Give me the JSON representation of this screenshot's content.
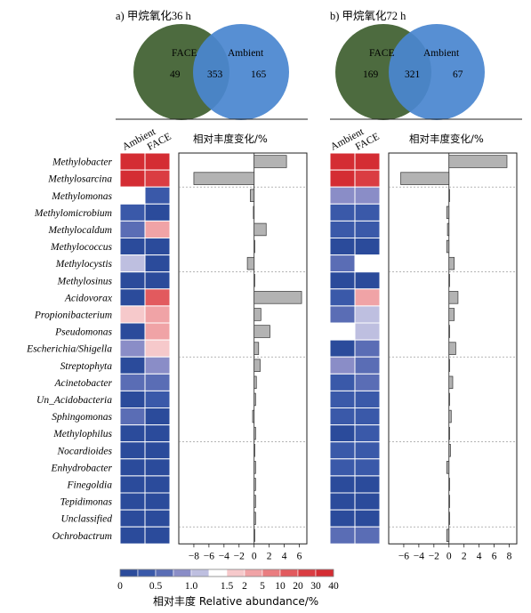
{
  "panels": [
    {
      "title": "a) 甲烷氧化36 h",
      "venn": {
        "left_label": "FACE",
        "right_label": "Ambient",
        "left_only": "49",
        "shared": "353",
        "right_only": "165"
      },
      "heatmap_columns": [
        "Ambient",
        "FACE"
      ],
      "bar_axis_label": "相对丰度变化/%"
    },
    {
      "title": "b) 甲烷氧化72 h",
      "venn": {
        "left_label": "FACE",
        "right_label": "Ambient",
        "left_only": "169",
        "shared": "321",
        "right_only": "67"
      },
      "heatmap_columns": [
        "Ambient",
        "FACE"
      ],
      "bar_axis_label": "相对丰度变化/%"
    }
  ],
  "colorbar": {
    "tick_labels": [
      "0",
      "0.5",
      "1.0",
      "1.5",
      "2",
      "5",
      "10",
      "20",
      "30",
      "40"
    ],
    "colors": [
      "#2b4b9b",
      "#3a59a9",
      "#5a6db5",
      "#8a8dc7",
      "#bebfe0",
      "#ffffff",
      "#f6c9cb",
      "#f0a3a6",
      "#ea7d80",
      "#e25a5e",
      "#da3d42",
      "#d42d33"
    ],
    "label": "相对丰度 Relative abundance/%"
  },
  "colors": {
    "face": "#4d6b3f",
    "ambient": "#4a86d0",
    "bar": "#b3b3b3"
  },
  "chart_data": [
    {
      "type": "heatmap",
      "title": "a) 甲烷氧化36 h",
      "rows": [
        "Methylobacter",
        "Methylosarcina",
        "Methylomonas",
        "Methylomicrobium",
        "Methylocaldum",
        "Methylococcus",
        "Methylocystis",
        "Methylosinus",
        "Acidovorax",
        "Propionibacterium",
        "Pseudomonas",
        "Escherichia/Shigella",
        "Streptophyta",
        "Acinetobacter",
        "Un_Acidobacteria",
        "Sphingomonas",
        "Methylophilus",
        "Nocardioides",
        "Enhydrobacter",
        "Finegoldia",
        "Tepidimonas",
        "Unclassified",
        "Ochrobactrum"
      ],
      "columns": [
        "Ambient",
        "FACE"
      ],
      "values": [
        [
          22,
          24
        ],
        [
          26,
          16
        ],
        [
          1.4,
          0.3
        ],
        [
          0.3,
          0.2
        ],
        [
          0.6,
          2.6
        ],
        [
          0.2,
          0.2
        ],
        [
          1.0,
          0.2
        ],
        [
          0.2,
          0.2
        ],
        [
          0.2,
          5.5
        ],
        [
          1.7,
          3.2
        ],
        [
          0.2,
          3.0
        ],
        [
          0.9,
          1.7
        ],
        [
          0.2,
          0.9
        ],
        [
          0.5,
          0.6
        ],
        [
          0.2,
          0.3
        ],
        [
          0.5,
          0.2
        ],
        [
          0.2,
          0.2
        ],
        [
          0.2,
          0.2
        ],
        [
          0.2,
          0.2
        ],
        [
          0.2,
          0.2
        ],
        [
          0.2,
          0.2
        ],
        [
          0.2,
          0.2
        ],
        [
          0.2,
          0.2
        ]
      ]
    },
    {
      "type": "bar",
      "title": "",
      "categories": [
        "Methylobacter",
        "Methylosarcina",
        "Methylomonas",
        "Methylomicrobium",
        "Methylocaldum",
        "Methylococcus",
        "Methylocystis",
        "Methylosinus",
        "Acidovorax",
        "Propionibacterium",
        "Pseudomonas",
        "Escherichia/Shigella",
        "Streptophyta",
        "Acinetobacter",
        "Un_Acidobacteria",
        "Sphingomonas",
        "Methylophilus",
        "Nocardioides",
        "Enhydrobacter",
        "Finegoldia",
        "Tepidimonas",
        "Unclassified",
        "Ochrobactrum"
      ],
      "values": [
        4.3,
        -8.0,
        -0.5,
        -0.1,
        1.6,
        0.1,
        -0.9,
        0.0,
        6.3,
        0.9,
        2.1,
        0.6,
        0.8,
        0.3,
        0.2,
        -0.2,
        0.2,
        0.1,
        0.2,
        0.2,
        0.2,
        0.2,
        0.0
      ],
      "xlabel": "相对丰度变化/%",
      "xlim": [
        -10,
        7
      ],
      "xticks": [
        -8,
        -6,
        -4,
        -2,
        0,
        2,
        4,
        6
      ]
    },
    {
      "type": "heatmap",
      "title": "b) 甲烷氧化72 h",
      "rows": [
        "Methylobacter",
        "Methylosarcina",
        "Methylomonas",
        "Methylomicrobium",
        "Methylocaldum",
        "Methylococcus",
        "Methylocystis",
        "Methylosinus",
        "Acidovorax",
        "Propionibacterium",
        "Pseudomonas",
        "Escherichia/Shigella",
        "Streptophyta",
        "Acinetobacter",
        "Un_Acidobacteria",
        "Sphingomonas",
        "Methylophilus",
        "Nocardioides",
        "Enhydrobacter",
        "Finegoldia",
        "Tepidimonas",
        "Unclassified",
        "Ochrobactrum"
      ],
      "columns": [
        "Ambient",
        "FACE"
      ],
      "values": [
        [
          30,
          28
        ],
        [
          22,
          14
        ],
        [
          0.9,
          0.8
        ],
        [
          0.3,
          0.3
        ],
        [
          0.3,
          0.3
        ],
        [
          0.2,
          0.2
        ],
        [
          0.6,
          1.4
        ],
        [
          0.2,
          0.2
        ],
        [
          0.4,
          2.3
        ],
        [
          0.5,
          1.2
        ],
        [
          1.4,
          1.2
        ],
        [
          0.2,
          0.6
        ],
        [
          0.8,
          0.7
        ],
        [
          0.4,
          0.7
        ],
        [
          0.3,
          0.3
        ],
        [
          0.4,
          0.3
        ],
        [
          0.2,
          0.3
        ],
        [
          0.4,
          0.3
        ],
        [
          0.4,
          0.3
        ],
        [
          0.2,
          0.2
        ],
        [
          0.2,
          0.2
        ],
        [
          0.2,
          0.2
        ],
        [
          0.5,
          0.5
        ]
      ]
    },
    {
      "type": "bar",
      "title": "",
      "categories": [
        "Methylobacter",
        "Methylosarcina",
        "Methylomonas",
        "Methylomicrobium",
        "Methylocaldum",
        "Methylococcus",
        "Methylocystis",
        "Methylosinus",
        "Acidovorax",
        "Propionibacterium",
        "Pseudomonas",
        "Escherichia/Shigella",
        "Streptophyta",
        "Acinetobacter",
        "Un_Acidobacteria",
        "Sphingomonas",
        "Methylophilus",
        "Nocardioides",
        "Enhydrobacter",
        "Finegoldia",
        "Tepidimonas",
        "Unclassified",
        "Ochrobactrum"
      ],
      "values": [
        7.7,
        -6.4,
        0.0,
        -0.3,
        -0.2,
        -0.3,
        0.7,
        0.0,
        1.2,
        0.7,
        0.0,
        0.9,
        0.0,
        0.5,
        0.0,
        0.3,
        0.1,
        0.2,
        -0.3,
        0.1,
        0.1,
        0.0,
        -0.3
      ],
      "xlabel": "相对丰度变化/%",
      "xlim": [
        -8,
        9
      ],
      "xticks": [
        -6,
        -4,
        -2,
        0,
        2,
        4,
        6,
        8
      ]
    }
  ]
}
